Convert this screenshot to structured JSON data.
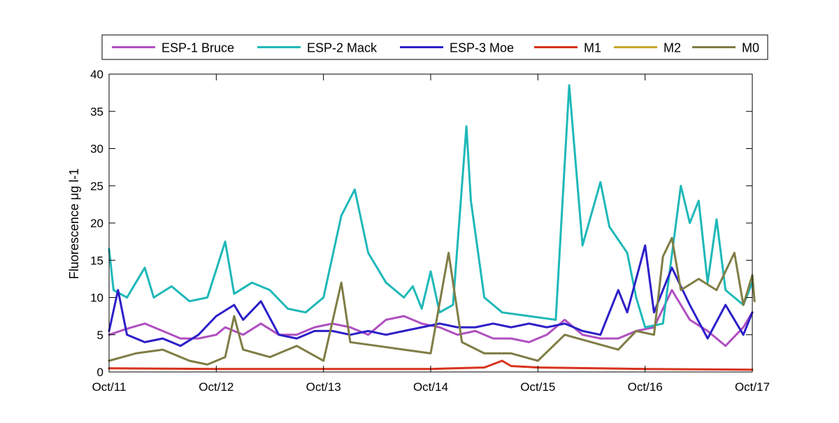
{
  "chart_data": {
    "type": "line",
    "title": "",
    "xlabel": "",
    "ylabel": "Fluorescence μg l-1",
    "ylim": [
      0,
      40
    ],
    "yticks": [
      0,
      5,
      10,
      15,
      20,
      25,
      30,
      35,
      40
    ],
    "xlim": [
      "2013-10-11",
      "2013-10-17"
    ],
    "xticks": [
      {
        "date": "2013-10-11",
        "label": "Oct/11"
      },
      {
        "date": "2013-10-12",
        "label": "Oct/12"
      },
      {
        "date": "2013-10-13",
        "label": "Oct/13"
      },
      {
        "date": "2013-10-14",
        "label": "Oct/14"
      },
      {
        "date": "2013-10-15",
        "label": "Oct/15"
      },
      {
        "date": "2013-10-16",
        "label": "Oct/16"
      },
      {
        "date": "2013-10-17",
        "label": "Oct/17"
      }
    ],
    "grid": false,
    "legend_position": "top, horizontal, above plot",
    "series": [
      {
        "name": "ESP-1 Bruce",
        "color": "#b04fc0",
        "points": [
          [
            "2013-10-11 00:00",
            5.0
          ],
          [
            "2013-10-11 04:00",
            5.8
          ],
          [
            "2013-10-11 08:00",
            6.5
          ],
          [
            "2013-10-11 12:00",
            5.5
          ],
          [
            "2013-10-11 16:00",
            4.5
          ],
          [
            "2013-10-11 20:00",
            4.5
          ],
          [
            "2013-10-12 00:00",
            5.0
          ],
          [
            "2013-10-12 02:00",
            6.0
          ],
          [
            "2013-10-12 06:00",
            5.0
          ],
          [
            "2013-10-12 10:00",
            6.5
          ],
          [
            "2013-10-12 14:00",
            5.0
          ],
          [
            "2013-10-12 18:00",
            5.0
          ],
          [
            "2013-10-12 22:00",
            6.0
          ],
          [
            "2013-10-13 02:00",
            6.5
          ],
          [
            "2013-10-13 06:00",
            6.0
          ],
          [
            "2013-10-13 10:00",
            5.0
          ],
          [
            "2013-10-13 14:00",
            7.0
          ],
          [
            "2013-10-13 18:00",
            7.5
          ],
          [
            "2013-10-13 22:00",
            6.5
          ],
          [
            "2013-10-14 02:00",
            6.0
          ],
          [
            "2013-10-14 06:00",
            5.0
          ],
          [
            "2013-10-14 10:00",
            5.5
          ],
          [
            "2013-10-14 14:00",
            4.5
          ],
          [
            "2013-10-14 18:00",
            4.5
          ],
          [
            "2013-10-14 22:00",
            4.0
          ],
          [
            "2013-10-15 02:00",
            5.0
          ],
          [
            "2013-10-15 06:00",
            7.0
          ],
          [
            "2013-10-15 10:00",
            5.0
          ],
          [
            "2013-10-15 14:00",
            4.5
          ],
          [
            "2013-10-15 18:00",
            4.5
          ],
          [
            "2013-10-15 22:00",
            5.5
          ],
          [
            "2013-10-16 02:00",
            6.0
          ],
          [
            "2013-10-16 06:00",
            11.0
          ],
          [
            "2013-10-16 10:00",
            7.0
          ],
          [
            "2013-10-16 14:00",
            5.5
          ],
          [
            "2013-10-16 18:00",
            3.5
          ],
          [
            "2013-10-16 22:00",
            6.0
          ],
          [
            "2013-10-17 00:00",
            8.0
          ]
        ]
      },
      {
        "name": "ESP-2 Mack",
        "color": "#1fb8b8",
        "points": [
          [
            "2013-10-11 00:00",
            16.5
          ],
          [
            "2013-10-11 01:00",
            11.0
          ],
          [
            "2013-10-11 04:00",
            10.0
          ],
          [
            "2013-10-11 06:00",
            12.0
          ],
          [
            "2013-10-11 08:00",
            14.0
          ],
          [
            "2013-10-11 10:00",
            10.0
          ],
          [
            "2013-10-11 14:00",
            11.5
          ],
          [
            "2013-10-11 18:00",
            9.5
          ],
          [
            "2013-10-11 22:00",
            10.0
          ],
          [
            "2013-10-12 02:00",
            17.5
          ],
          [
            "2013-10-12 04:00",
            10.5
          ],
          [
            "2013-10-12 08:00",
            12.0
          ],
          [
            "2013-10-12 12:00",
            11.0
          ],
          [
            "2013-10-12 16:00",
            8.5
          ],
          [
            "2013-10-12 20:00",
            8.0
          ],
          [
            "2013-10-13 00:00",
            10.0
          ],
          [
            "2013-10-13 04:00",
            21.0
          ],
          [
            "2013-10-13 07:00",
            24.5
          ],
          [
            "2013-10-13 10:00",
            16.0
          ],
          [
            "2013-10-13 14:00",
            12.0
          ],
          [
            "2013-10-13 18:00",
            10.0
          ],
          [
            "2013-10-13 20:00",
            11.5
          ],
          [
            "2013-10-13 22:00",
            8.5
          ],
          [
            "2013-10-14 00:00",
            13.5
          ],
          [
            "2013-10-14 02:00",
            8.0
          ],
          [
            "2013-10-14 05:00",
            9.0
          ],
          [
            "2013-10-14 08:00",
            33.0
          ],
          [
            "2013-10-14 09:00",
            23.0
          ],
          [
            "2013-10-14 12:00",
            10.0
          ],
          [
            "2013-10-14 16:00",
            8.0
          ],
          [
            "2013-10-14 22:00",
            7.5
          ],
          [
            "2013-10-15 04:00",
            7.0
          ],
          [
            "2013-10-15 07:00",
            38.5
          ],
          [
            "2013-10-15 10:00",
            17.0
          ],
          [
            "2013-10-15 14:00",
            25.5
          ],
          [
            "2013-10-15 16:00",
            19.5
          ],
          [
            "2013-10-15 20:00",
            16.0
          ],
          [
            "2013-10-15 22:00",
            10.0
          ],
          [
            "2013-10-16 00:00",
            6.0
          ],
          [
            "2013-10-16 04:00",
            6.5
          ],
          [
            "2013-10-16 08:00",
            25.0
          ],
          [
            "2013-10-16 10:00",
            20.0
          ],
          [
            "2013-10-16 12:00",
            23.0
          ],
          [
            "2013-10-16 14:00",
            12.0
          ],
          [
            "2013-10-16 16:00",
            20.5
          ],
          [
            "2013-10-16 18:00",
            11.0
          ],
          [
            "2013-10-16 22:00",
            9.0
          ],
          [
            "2013-10-17 00:00",
            12.0
          ]
        ]
      },
      {
        "name": "ESP-3 Moe",
        "color": "#2c1fc8",
        "points": [
          [
            "2013-10-11 00:00",
            5.5
          ],
          [
            "2013-10-11 02:00",
            11.0
          ],
          [
            "2013-10-11 04:00",
            5.0
          ],
          [
            "2013-10-11 08:00",
            4.0
          ],
          [
            "2013-10-11 12:00",
            4.5
          ],
          [
            "2013-10-11 16:00",
            3.5
          ],
          [
            "2013-10-11 20:00",
            5.0
          ],
          [
            "2013-10-12 00:00",
            7.5
          ],
          [
            "2013-10-12 04:00",
            9.0
          ],
          [
            "2013-10-12 06:00",
            7.0
          ],
          [
            "2013-10-12 10:00",
            9.5
          ],
          [
            "2013-10-12 14:00",
            5.0
          ],
          [
            "2013-10-12 18:00",
            4.5
          ],
          [
            "2013-10-12 22:00",
            5.5
          ],
          [
            "2013-10-13 02:00",
            5.5
          ],
          [
            "2013-10-13 06:00",
            5.0
          ],
          [
            "2013-10-13 10:00",
            5.5
          ],
          [
            "2013-10-13 14:00",
            5.0
          ],
          [
            "2013-10-13 18:00",
            5.5
          ],
          [
            "2013-10-13 22:00",
            6.0
          ],
          [
            "2013-10-14 02:00",
            6.5
          ],
          [
            "2013-10-14 06:00",
            6.0
          ],
          [
            "2013-10-14 10:00",
            6.0
          ],
          [
            "2013-10-14 14:00",
            6.5
          ],
          [
            "2013-10-14 18:00",
            6.0
          ],
          [
            "2013-10-14 22:00",
            6.5
          ],
          [
            "2013-10-15 02:00",
            6.0
          ],
          [
            "2013-10-15 06:00",
            6.5
          ],
          [
            "2013-10-15 10:00",
            5.5
          ],
          [
            "2013-10-15 14:00",
            5.0
          ],
          [
            "2013-10-15 18:00",
            11.0
          ],
          [
            "2013-10-15 20:00",
            8.0
          ],
          [
            "2013-10-16 00:00",
            17.0
          ],
          [
            "2013-10-16 02:00",
            8.0
          ],
          [
            "2013-10-16 06:00",
            14.0
          ],
          [
            "2013-10-16 10:00",
            9.0
          ],
          [
            "2013-10-16 14:00",
            4.5
          ],
          [
            "2013-10-16 18:00",
            9.0
          ],
          [
            "2013-10-16 22:00",
            5.0
          ],
          [
            "2013-10-17 00:00",
            8.0
          ]
        ]
      },
      {
        "name": "M1",
        "color": "#d8321c",
        "points": [
          [
            "2013-10-11 00:00",
            0.5
          ],
          [
            "2013-10-12 00:00",
            0.4
          ],
          [
            "2013-10-13 00:00",
            0.4
          ],
          [
            "2013-10-14 00:00",
            0.4
          ],
          [
            "2013-10-14 12:00",
            0.6
          ],
          [
            "2013-10-14 16:00",
            1.5
          ],
          [
            "2013-10-14 18:00",
            0.8
          ],
          [
            "2013-10-15 00:00",
            0.6
          ],
          [
            "2013-10-16 00:00",
            0.4
          ],
          [
            "2013-10-17 00:00",
            0.3
          ]
        ]
      },
      {
        "name": "M2",
        "color": "#c8a82c",
        "points": []
      },
      {
        "name": "M0",
        "color": "#7f7d45",
        "points": [
          [
            "2013-10-11 00:00",
            1.5
          ],
          [
            "2013-10-11 06:00",
            2.5
          ],
          [
            "2013-10-11 12:00",
            3.0
          ],
          [
            "2013-10-11 18:00",
            1.5
          ],
          [
            "2013-10-11 22:00",
            1.0
          ],
          [
            "2013-10-12 02:00",
            2.0
          ],
          [
            "2013-10-12 04:00",
            7.5
          ],
          [
            "2013-10-12 06:00",
            3.0
          ],
          [
            "2013-10-12 12:00",
            2.0
          ],
          [
            "2013-10-12 18:00",
            3.5
          ],
          [
            "2013-10-13 00:00",
            1.5
          ],
          [
            "2013-10-13 04:00",
            12.0
          ],
          [
            "2013-10-13 06:00",
            4.0
          ],
          [
            "2013-10-13 12:00",
            3.5
          ],
          [
            "2013-10-13 18:00",
            3.0
          ],
          [
            "2013-10-14 00:00",
            2.5
          ],
          [
            "2013-10-14 04:00",
            16.0
          ],
          [
            "2013-10-14 07:00",
            4.0
          ],
          [
            "2013-10-14 12:00",
            2.5
          ],
          [
            "2013-10-14 18:00",
            2.5
          ],
          [
            "2013-10-15 00:00",
            1.5
          ],
          [
            "2013-10-15 06:00",
            5.0
          ],
          [
            "2013-10-15 12:00",
            4.0
          ],
          [
            "2013-10-15 18:00",
            3.0
          ],
          [
            "2013-10-15 22:00",
            5.5
          ],
          [
            "2013-10-16 02:00",
            5.0
          ],
          [
            "2013-10-16 04:00",
            15.5
          ],
          [
            "2013-10-16 06:00",
            18.0
          ],
          [
            "2013-10-16 08:00",
            11.0
          ],
          [
            "2013-10-16 12:00",
            12.5
          ],
          [
            "2013-10-16 16:00",
            11.0
          ],
          [
            "2013-10-16 20:00",
            16.0
          ],
          [
            "2013-10-16 22:00",
            9.0
          ],
          [
            "2013-10-17 00:00",
            13.0
          ],
          [
            "2013-10-17 00:30",
            9.5
          ]
        ]
      }
    ]
  }
}
